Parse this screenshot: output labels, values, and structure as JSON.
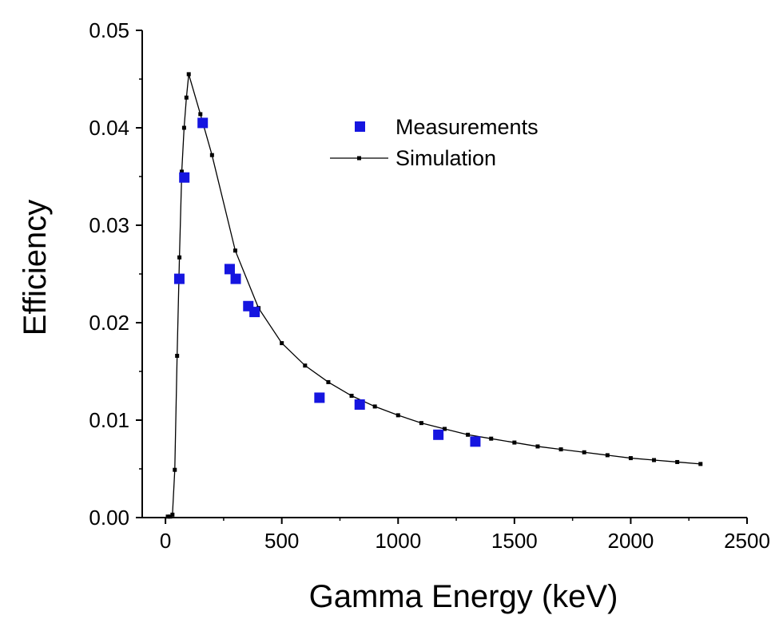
{
  "chart_data": {
    "type": "scatter",
    "title": "",
    "xlabel": "Gamma Energy (keV)",
    "ylabel": "Efficiency",
    "xlim": [
      -100,
      2500
    ],
    "ylim": [
      0.0,
      0.05
    ],
    "x_ticks": [
      0,
      500,
      1000,
      1500,
      2000,
      2500
    ],
    "y_ticks": [
      0.0,
      0.01,
      0.02,
      0.03,
      0.04,
      0.05
    ],
    "x_tick_labels": [
      "0",
      "500",
      "1000",
      "1500",
      "2000",
      "2500"
    ],
    "y_tick_labels": [
      "0.00",
      "0.01",
      "0.02",
      "0.03",
      "0.04",
      "0.05"
    ],
    "grid": false,
    "legend_position": "top-right",
    "series": [
      {
        "name": "Measurements",
        "kind": "scatter",
        "marker": "square",
        "color": "#1515e0",
        "x": [
          59.5,
          81,
          160,
          276,
          302,
          356,
          383,
          662,
          835,
          1173,
          1332
        ],
        "y": [
          0.0245,
          0.0349,
          0.0405,
          0.0255,
          0.0245,
          0.0217,
          0.0211,
          0.0123,
          0.0116,
          0.0085,
          0.0078
        ]
      },
      {
        "name": "Simulation",
        "kind": "line",
        "marker": "small-square",
        "color": "#000000",
        "x": [
          10,
          20,
          30,
          40,
          50,
          60,
          70,
          80,
          90,
          100,
          150,
          200,
          300,
          400,
          500,
          600,
          700,
          800,
          900,
          1000,
          1100,
          1200,
          1300,
          1400,
          1500,
          1600,
          1700,
          1800,
          1900,
          2000,
          2100,
          2200,
          2300
        ],
        "y": [
          0.0001,
          0.0001,
          0.0003,
          0.0049,
          0.0166,
          0.0267,
          0.0355,
          0.04,
          0.0431,
          0.0455,
          0.0414,
          0.0372,
          0.0274,
          0.0215,
          0.0179,
          0.0156,
          0.0139,
          0.0125,
          0.0114,
          0.0105,
          0.0097,
          0.0091,
          0.0085,
          0.0081,
          0.0077,
          0.0073,
          0.007,
          0.0067,
          0.0064,
          0.0061,
          0.0059,
          0.0057,
          0.0055
        ]
      }
    ]
  }
}
